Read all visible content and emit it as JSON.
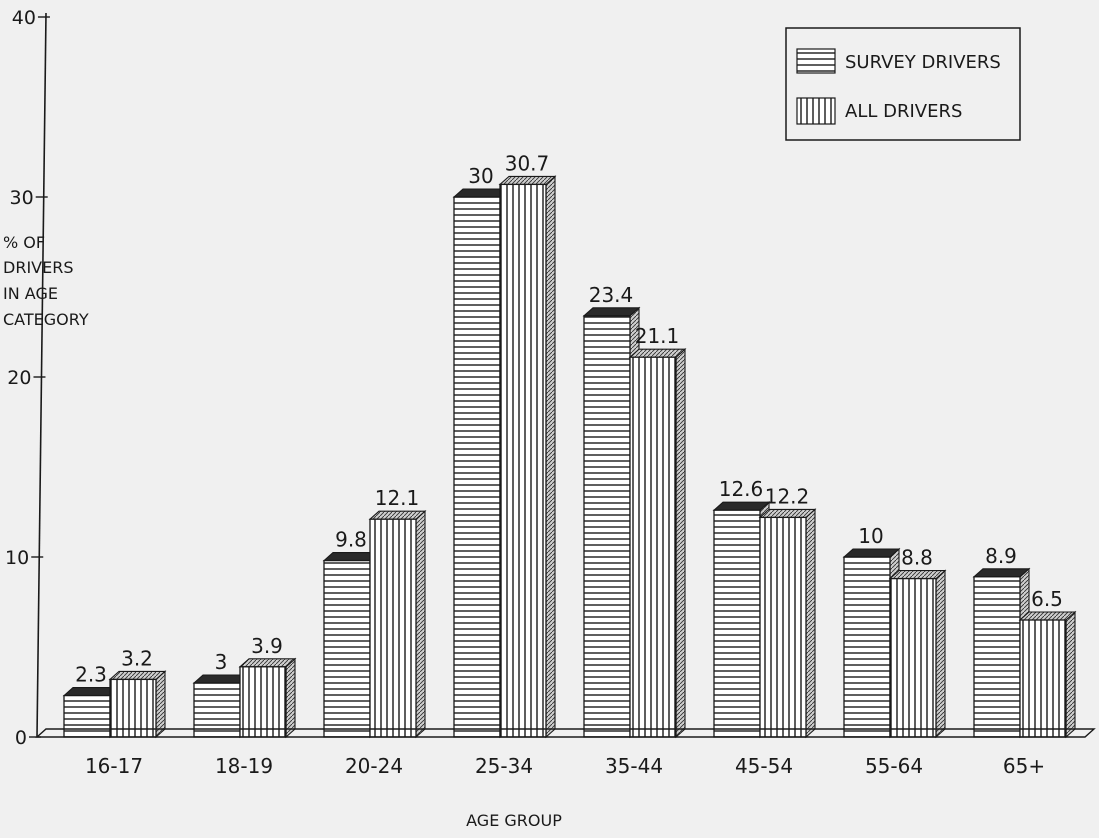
{
  "chart_data": {
    "type": "bar",
    "title": "",
    "xlabel": "AGE GROUP",
    "ylabel_lines": [
      "% OF",
      "DRIVERS",
      "IN AGE",
      "CATEGORY"
    ],
    "categories": [
      "16-17",
      "18-19",
      "20-24",
      "25-34",
      "35-44",
      "45-54",
      "55-64",
      "65+"
    ],
    "series": [
      {
        "name": "SURVEY DRIVERS",
        "pattern": "horizontal-stripes",
        "values": [
          2.3,
          3,
          9.8,
          30,
          23.4,
          12.6,
          10,
          8.9
        ],
        "value_labels": [
          "2.3",
          "3",
          "9.8",
          "30",
          "23.4",
          "12.6",
          "10",
          "8.9"
        ]
      },
      {
        "name": "ALL DRIVERS",
        "pattern": "vertical-stripes",
        "values": [
          3.2,
          3.9,
          12.1,
          30.7,
          21.1,
          12.2,
          8.8,
          6.5
        ],
        "value_labels": [
          "3.2",
          "3.9",
          "12.1",
          "30.7",
          "21.1",
          "12.2",
          "8.8",
          "6.5"
        ]
      }
    ],
    "ylim": [
      0,
      40
    ],
    "yticks": [
      0,
      10,
      20,
      30,
      40
    ],
    "grid": false,
    "legend_position": "top-right",
    "colors": {
      "background": "#f0f0f0",
      "ink": "#1a1a1a",
      "survey_cap": "#2a2a2a",
      "all_cap": "#9a9a9a",
      "bar_fill": "#ffffff"
    }
  }
}
